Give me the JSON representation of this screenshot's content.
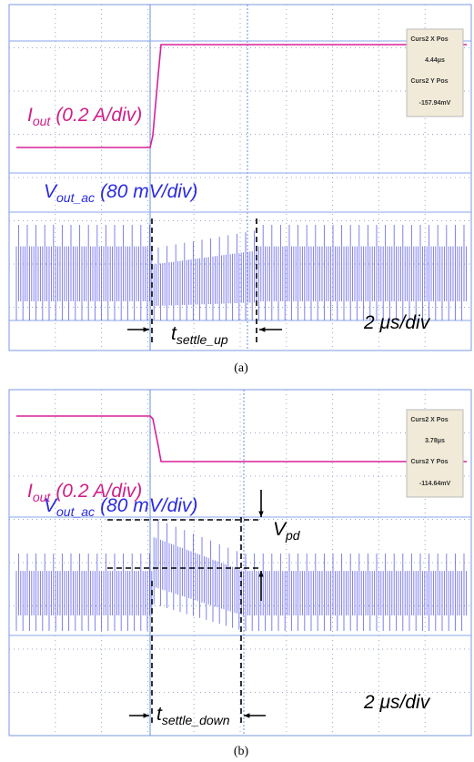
{
  "panels": [
    {
      "cursor": {
        "x_label": "Curs2 X Pos",
        "x_value": "4.44μs",
        "y_label": "Curs2 Y Pos",
        "y_value": "-157.94mV"
      },
      "current_label": {
        "symbol": "I",
        "subscript": "out",
        "scale": "(0.2 A/div)"
      },
      "voltage_label": {
        "symbol": "V",
        "subscript": "out_ac",
        "scale": "(80 mV/div)"
      },
      "settle_label": {
        "symbol": "t",
        "subscript": "settle_up"
      },
      "timebase": "2 μs/div",
      "caption": "(a)"
    },
    {
      "cursor": {
        "x_label": "Curs2 X Pos",
        "x_value": "3.78μs",
        "y_label": "Curs2 Y Pos",
        "y_value": "-114.64mV"
      },
      "current_label": {
        "symbol": "I",
        "subscript": "out",
        "scale": "(0.2 A/div)"
      },
      "voltage_label": {
        "symbol": "V",
        "subscript": "out_ac",
        "scale": "(80 mV/div)"
      },
      "peak_label": {
        "symbol": "V",
        "subscript": "pd"
      },
      "settle_label": {
        "symbol": "t",
        "subscript": "settle_down"
      },
      "timebase": "2 μs/div",
      "caption": "(b)"
    }
  ]
}
